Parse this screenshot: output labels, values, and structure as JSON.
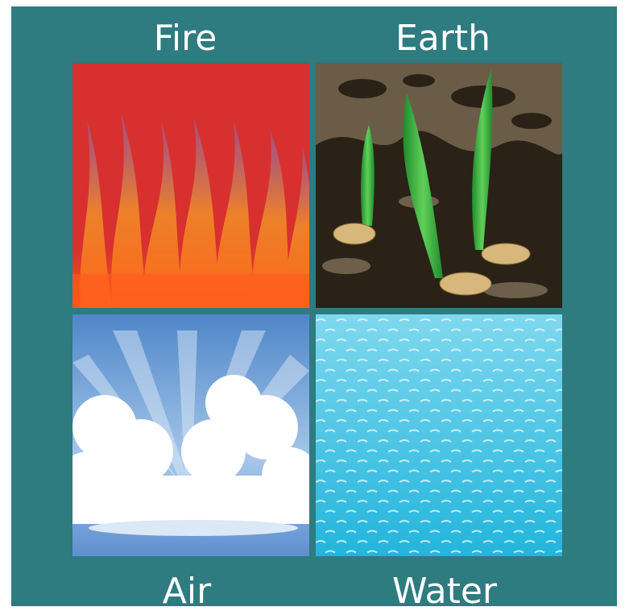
{
  "elements": [
    {
      "label": "Fire"
    },
    {
      "label": "Earth"
    },
    {
      "label": "Air"
    },
    {
      "label": "Water"
    }
  ]
}
